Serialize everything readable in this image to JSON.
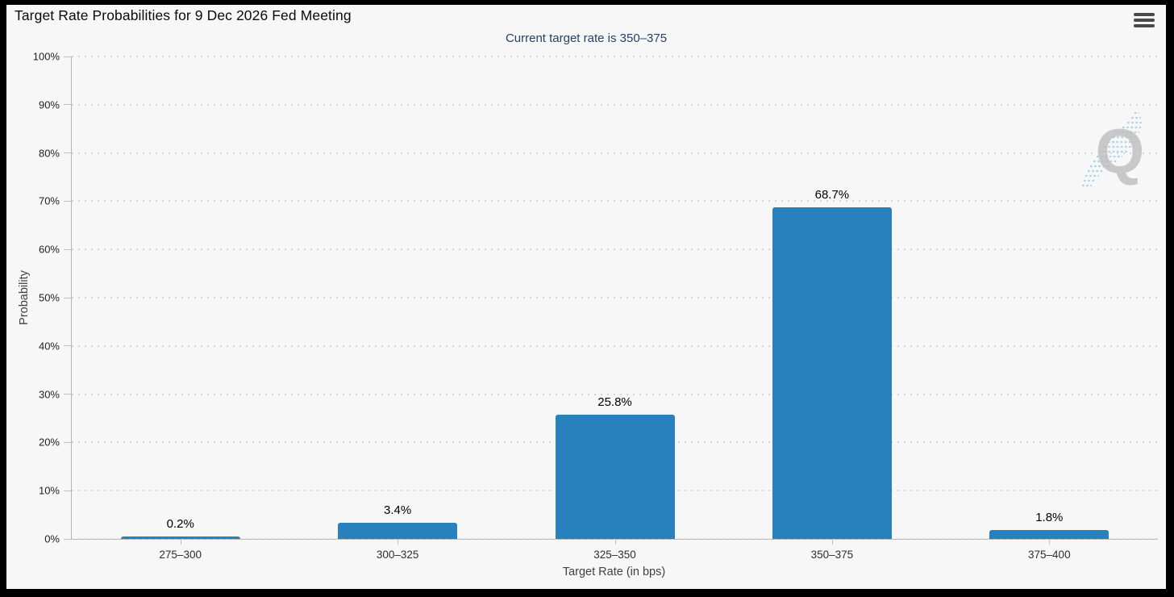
{
  "header": {
    "menu_icon": "hamburger-icon"
  },
  "colors": {
    "frame": "#000000",
    "background": "#f7f7f7",
    "bar": "#2880bc",
    "subtitle_text": "#263f6a",
    "title_text": "#0a0a0a",
    "axis_line": "#b5b5b5",
    "gridline": "#d3d3d3",
    "watermark_letter": "#bdbdbd",
    "watermark_streak": "#aed4e8"
  },
  "watermark": {
    "letter": "Q"
  },
  "chart_data": {
    "type": "bar",
    "title": "Target Rate Probabilities for 9 Dec 2026 Fed Meeting",
    "subtitle": "Current target rate is 350–375",
    "categories": [
      "275–300",
      "300–325",
      "325–350",
      "350–375",
      "375–400"
    ],
    "values": [
      0.2,
      3.4,
      25.8,
      68.7,
      1.8
    ],
    "value_labels": [
      "0.2%",
      "3.4%",
      "25.8%",
      "68.7%",
      "1.8%"
    ],
    "xlabel": "Target Rate (in bps)",
    "ylabel": "Probability",
    "ylim": [
      0,
      100
    ],
    "ytick_step": 10,
    "ytick_labels": [
      "0%",
      "10%",
      "20%",
      "30%",
      "40%",
      "50%",
      "60%",
      "70%",
      "80%",
      "90%",
      "100%"
    ],
    "grid": "dotted horizontal, on",
    "legend": "none",
    "bar_color": "#2880bc"
  }
}
